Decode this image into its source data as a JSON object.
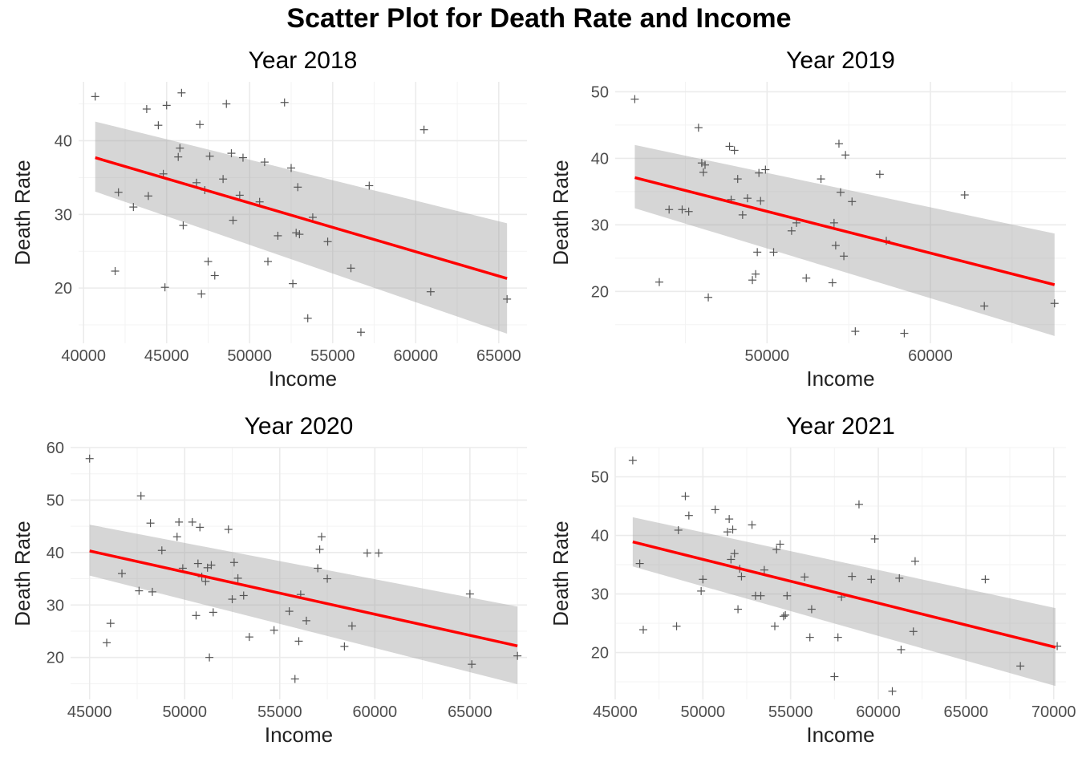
{
  "title": "Scatter Plot for Death Rate and Income",
  "chart_data": [
    {
      "type": "scatter",
      "title": "Year 2018",
      "xlabel": "Income",
      "ylabel": "Death Rate",
      "xlim": [
        39700,
        66700
      ],
      "ylim": [
        12.5,
        48.0
      ],
      "xticks": [
        40000,
        45000,
        50000,
        55000,
        60000,
        65000
      ],
      "yticks": [
        20,
        30,
        40
      ],
      "marker": "plus",
      "fit": {
        "x0": 40700,
        "y0": 37.7,
        "x1": 65500,
        "y1": 21.3,
        "band_lo": [
          33.1,
          13.8
        ],
        "band_hi": [
          42.6,
          28.8
        ],
        "color": "#ff0000"
      },
      "x": [
        40700,
        41900,
        42100,
        43000,
        43800,
        43900,
        44500,
        44800,
        44900,
        45000,
        45700,
        45800,
        45900,
        46000,
        46800,
        47000,
        47100,
        47300,
        47500,
        47600,
        47900,
        48400,
        48600,
        48900,
        49000,
        49400,
        49600,
        50600,
        50900,
        51100,
        51700,
        52100,
        52500,
        52600,
        52800,
        52900,
        53000,
        53500,
        53800,
        54700,
        56100,
        56700,
        57200,
        60500,
        60900,
        65500
      ],
      "y": [
        46.0,
        22.3,
        33.0,
        31.0,
        44.3,
        32.5,
        42.1,
        35.5,
        20.1,
        44.8,
        37.8,
        39.0,
        46.5,
        28.5,
        34.3,
        42.2,
        19.2,
        33.3,
        23.6,
        37.9,
        21.7,
        34.8,
        45.0,
        38.3,
        29.2,
        32.6,
        37.7,
        31.7,
        37.1,
        23.6,
        27.1,
        45.2,
        36.3,
        20.6,
        27.5,
        33.7,
        27.3,
        15.9,
        29.6,
        26.3,
        22.7,
        14.0,
        33.9,
        41.5,
        19.5,
        18.5
      ]
    },
    {
      "type": "scatter",
      "title": "Year 2019",
      "xlabel": "Income",
      "ylabel": "Death Rate",
      "xlim": [
        40700,
        68300
      ],
      "ylim": [
        12.2,
        51.5
      ],
      "xticks": [
        50000,
        60000
      ],
      "yticks": [
        20,
        30,
        40,
        50
      ],
      "marker": "plus",
      "fit": {
        "x0": 41900,
        "y0": 37.1,
        "x1": 67600,
        "y1": 21.0,
        "band_lo": [
          32.5,
          13.3
        ],
        "band_hi": [
          42.0,
          28.7
        ],
        "color": "#ff0000"
      },
      "x": [
        41900,
        43400,
        44000,
        44800,
        45200,
        45800,
        46000,
        46100,
        46200,
        46400,
        47700,
        47800,
        48000,
        48200,
        48500,
        48800,
        49100,
        49300,
        49400,
        49500,
        49600,
        49900,
        50400,
        51500,
        51800,
        52400,
        53300,
        54000,
        54100,
        54200,
        54400,
        54500,
        54700,
        54800,
        55200,
        55400,
        56900,
        57300,
        58400,
        62100,
        63300,
        67600
      ],
      "y": [
        48.9,
        21.4,
        32.3,
        32.3,
        32.0,
        44.6,
        39.3,
        37.9,
        39.0,
        19.1,
        41.8,
        33.8,
        41.2,
        36.9,
        31.5,
        34.0,
        21.7,
        22.6,
        25.9,
        37.8,
        33.6,
        38.3,
        25.9,
        29.1,
        30.3,
        22.0,
        36.9,
        21.3,
        30.3,
        26.9,
        42.2,
        34.9,
        25.3,
        40.5,
        33.5,
        14.0,
        37.6,
        27.6,
        13.7,
        34.5,
        17.8,
        18.2
      ]
    },
    {
      "type": "scatter",
      "title": "Year 2020",
      "xlabel": "Income",
      "ylabel": "Death Rate",
      "xlim": [
        44000,
        68000
      ],
      "ylim": [
        12.0,
        60.0
      ],
      "xticks": [
        45000,
        50000,
        55000,
        60000,
        65000
      ],
      "yticks": [
        20,
        30,
        40,
        50,
        60
      ],
      "marker": "plus",
      "fit": {
        "x0": 45000,
        "y0": 40.3,
        "x1": 67500,
        "y1": 22.2,
        "band_lo": [
          35.6,
          14.9
        ],
        "band_hi": [
          45.3,
          29.7
        ],
        "color": "#ff0000"
      },
      "x": [
        45000,
        45900,
        46100,
        46700,
        47600,
        47700,
        48200,
        48300,
        48800,
        49600,
        49700,
        49900,
        50400,
        50600,
        50700,
        50800,
        50900,
        51100,
        51200,
        51300,
        51400,
        51500,
        52300,
        52500,
        52600,
        52800,
        53100,
        53400,
        54700,
        55500,
        55800,
        56000,
        56100,
        56400,
        57000,
        57100,
        57200,
        57500,
        58400,
        58800,
        59600,
        60200,
        65000,
        65100,
        67500
      ],
      "y": [
        57.9,
        22.8,
        26.5,
        36.0,
        32.7,
        50.8,
        45.6,
        32.5,
        40.4,
        43.0,
        45.8,
        37.0,
        45.8,
        28.0,
        37.9,
        44.8,
        35.4,
        34.5,
        37.1,
        20.0,
        37.6,
        28.6,
        44.4,
        31.1,
        38.1,
        35.1,
        31.8,
        23.9,
        25.2,
        28.8,
        15.9,
        23.1,
        32.0,
        27.0,
        37.0,
        40.6,
        43.0,
        35.0,
        22.1,
        26.0,
        39.9,
        39.9,
        32.1,
        18.7,
        20.3
      ]
    },
    {
      "type": "scatter",
      "title": "Year 2021",
      "xlabel": "Income",
      "ylabel": "Death Rate",
      "xlim": [
        45000,
        70700
      ],
      "ylim": [
        12.0,
        55.0
      ],
      "xticks": [
        45000,
        50000,
        55000,
        60000,
        65000,
        70000
      ],
      "yticks": [
        20,
        30,
        40,
        50
      ],
      "marker": "plus",
      "fit": {
        "x0": 46000,
        "y0": 38.9,
        "x1": 70100,
        "y1": 20.9,
        "band_lo": [
          34.7,
          14.3
        ],
        "band_hi": [
          43.1,
          27.6
        ],
        "color": "#ff0000"
      },
      "x": [
        46000,
        46400,
        46600,
        48500,
        48600,
        49000,
        49200,
        49900,
        50000,
        50700,
        51400,
        51500,
        51600,
        51700,
        51800,
        52000,
        52100,
        52200,
        52800,
        53000,
        53300,
        53500,
        54100,
        54200,
        54400,
        54600,
        54700,
        54800,
        55800,
        56100,
        56200,
        57500,
        57700,
        57900,
        58500,
        58900,
        59600,
        59800,
        60800,
        61200,
        61300,
        62000,
        62100,
        66100,
        68100,
        70200
      ],
      "y": [
        52.8,
        35.2,
        23.9,
        24.5,
        40.9,
        46.7,
        43.4,
        30.5,
        32.5,
        44.4,
        40.6,
        42.8,
        35.9,
        41.0,
        36.9,
        27.4,
        34.3,
        33.0,
        41.8,
        29.7,
        29.7,
        34.1,
        24.5,
        37.6,
        38.5,
        26.2,
        26.4,
        29.7,
        32.9,
        22.6,
        27.4,
        15.9,
        22.6,
        29.5,
        33.0,
        45.3,
        32.5,
        39.4,
        13.4,
        32.7,
        20.5,
        23.6,
        35.6,
        32.5,
        17.7,
        21.1
      ]
    }
  ]
}
